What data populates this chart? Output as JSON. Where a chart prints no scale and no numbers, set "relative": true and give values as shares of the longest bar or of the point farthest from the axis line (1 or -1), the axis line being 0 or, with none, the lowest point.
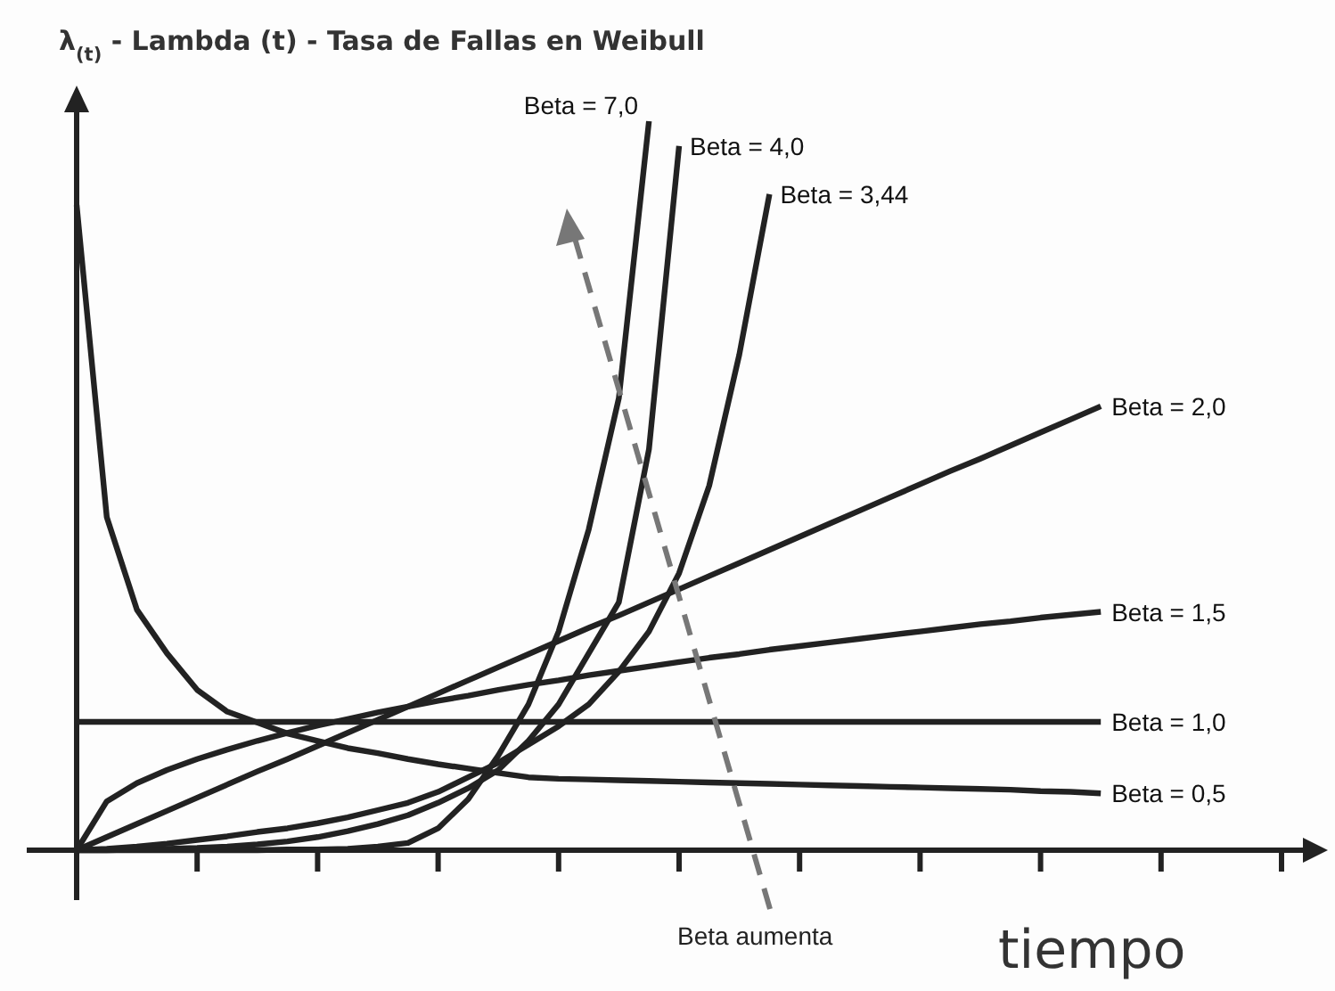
{
  "chart_data": {
    "type": "line",
    "relative": true,
    "title": "λ$_{(t)}$ - Lambda (t) - Tasa de Fallas en Weibull",
    "xlabel": "tiempo",
    "annotations": [
      "Beta aumenta"
    ],
    "line_style": "solid",
    "categories": [
      null,
      null,
      null,
      null,
      null,
      null,
      null,
      null,
      null,
      null,
      null,
      null,
      null,
      null,
      null,
      null,
      null,
      null,
      null,
      null,
      null,
      null,
      null,
      null,
      null,
      null,
      null,
      null,
      null,
      null,
      null,
      null,
      null,
      null,
      null,
      null,
      null,
      null,
      null,
      null,
      null,
      null
    ],
    "series": [
      {
        "name": "Beta = 7,0",
        "color": "#222222",
        "values": [
          0,
          0,
          0,
          0,
          0,
          0,
          0,
          0.001,
          0.001,
          0.002,
          0.005,
          0.01,
          0.03,
          0.07,
          0.13,
          0.2,
          0.3,
          0.44,
          0.62,
          1.0,
          null,
          null,
          null,
          null,
          null,
          null,
          null,
          null,
          null,
          null,
          null,
          null,
          null,
          null,
          null,
          null,
          null,
          null,
          null,
          null,
          null,
          null
        ]
      },
      {
        "name": "Beta = 4,0",
        "color": "#222222",
        "values": [
          0,
          0,
          0.001,
          0.002,
          0.003,
          0.005,
          0.008,
          0.012,
          0.018,
          0.026,
          0.036,
          0.048,
          0.065,
          0.085,
          0.11,
          0.15,
          0.2,
          0.27,
          0.34,
          0.55,
          0.966,
          null,
          null,
          null,
          null,
          null,
          null,
          null,
          null,
          null,
          null,
          null,
          null,
          null,
          null,
          null,
          null,
          null,
          null,
          null,
          null,
          null
        ]
      },
      {
        "name": "Beta = 3,44",
        "color": "#222222",
        "values": [
          0,
          0.002,
          0.005,
          0.009,
          0.014,
          0.019,
          0.025,
          0.03,
          0.037,
          0.045,
          0.055,
          0.065,
          0.08,
          0.1,
          0.12,
          0.145,
          0.17,
          0.2,
          0.245,
          0.3,
          0.38,
          0.5,
          0.68,
          0.9,
          null,
          null,
          null,
          null,
          null,
          null,
          null,
          null,
          null,
          null,
          null,
          null,
          null,
          null,
          null,
          null,
          null,
          null
        ]
      },
      {
        "name": "Beta = 2,0",
        "color": "#222222",
        "values": [
          0,
          0.018,
          0.036,
          0.054,
          0.072,
          0.09,
          0.108,
          0.125,
          0.143,
          0.161,
          0.179,
          0.197,
          0.215,
          0.233,
          0.251,
          0.269,
          0.287,
          0.305,
          0.322,
          0.34,
          0.358,
          0.376,
          0.394,
          0.412,
          0.43,
          0.448,
          0.466,
          0.484,
          0.502,
          0.52,
          0.537,
          0.555,
          0.573,
          0.591,
          0.609,
          null,
          null,
          null,
          null,
          null,
          null,
          null
        ]
      },
      {
        "name": "Beta = 1,5",
        "color": "#222222",
        "values": [
          0,
          0.067,
          0.092,
          0.11,
          0.125,
          0.138,
          0.15,
          0.161,
          0.171,
          0.18,
          0.189,
          0.197,
          0.205,
          0.212,
          0.22,
          0.227,
          0.233,
          0.24,
          0.246,
          0.252,
          0.258,
          0.264,
          0.269,
          0.275,
          0.28,
          0.285,
          0.29,
          0.295,
          0.3,
          0.305,
          0.31,
          0.314,
          0.319,
          0.323,
          0.327,
          null,
          null,
          null,
          null,
          null,
          null,
          null
        ]
      },
      {
        "name": "Beta = 1,0",
        "color": "#222222",
        "values": [
          0.176,
          0.176,
          0.176,
          0.176,
          0.176,
          0.176,
          0.176,
          0.176,
          0.176,
          0.176,
          0.176,
          0.176,
          0.176,
          0.176,
          0.176,
          0.176,
          0.176,
          0.176,
          0.176,
          0.176,
          0.176,
          0.176,
          0.176,
          0.176,
          0.176,
          0.176,
          0.176,
          0.176,
          0.176,
          0.176,
          0.176,
          0.176,
          0.176,
          0.176,
          0.176,
          null,
          null,
          null,
          null,
          null,
          null,
          null
        ]
      },
      {
        "name": "Beta = 0,5",
        "color": "#222222",
        "values": [
          0.885,
          0.457,
          0.33,
          0.27,
          0.22,
          0.19,
          0.175,
          0.16,
          0.15,
          0.14,
          0.133,
          0.125,
          0.118,
          0.112,
          0.106,
          0.1,
          0.098,
          0.097,
          0.096,
          0.095,
          0.094,
          0.093,
          0.092,
          0.091,
          0.09,
          0.089,
          0.088,
          0.087,
          0.086,
          0.085,
          0.084,
          0.083,
          0.081,
          0.08,
          0.078,
          null,
          null,
          null,
          null,
          null,
          null,
          null
        ]
      }
    ]
  }
}
